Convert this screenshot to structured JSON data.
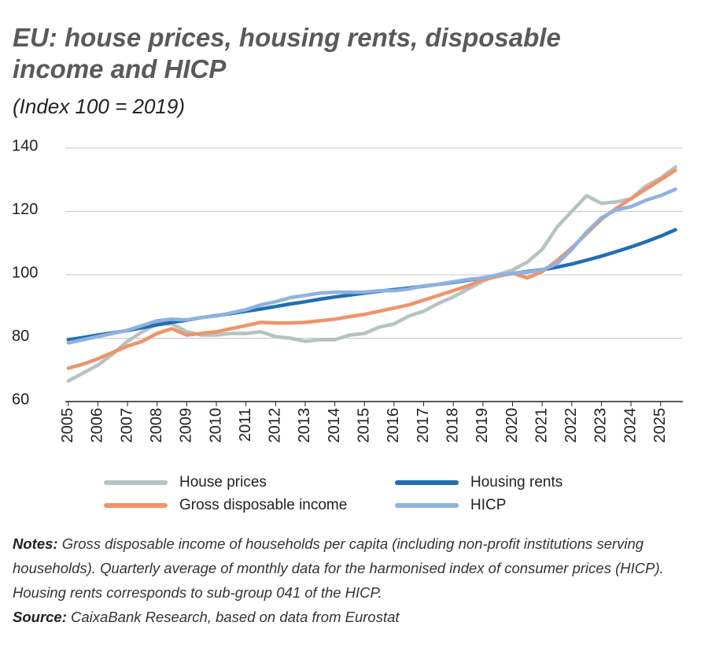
{
  "chart_data": {
    "type": "line",
    "title": "EU: house prices, housing rents, disposable income and HICP",
    "subtitle": "(Index 100 = 2019)",
    "x": [
      2005,
      2005.5,
      2006,
      2006.5,
      2007,
      2007.5,
      2008,
      2008.5,
      2009,
      2009.5,
      2010,
      2010.5,
      2011,
      2011.5,
      2012,
      2012.5,
      2013,
      2013.5,
      2014,
      2014.5,
      2015,
      2015.5,
      2016,
      2016.5,
      2017,
      2017.5,
      2018,
      2018.5,
      2019,
      2019.5,
      2020,
      2020.5,
      2021,
      2021.5,
      2022,
      2022.5,
      2023,
      2023.5,
      2024,
      2024.5,
      2025,
      2025.5
    ],
    "series": [
      {
        "name": "House prices",
        "color": "#b5c3c3",
        "values": [
          66.5,
          69,
          71.5,
          75,
          79,
          82,
          84.5,
          84.5,
          82,
          81,
          81,
          81.5,
          81.5,
          82,
          80.5,
          80,
          79,
          79.5,
          79.5,
          81,
          81.5,
          83.5,
          84.5,
          87,
          88.5,
          91,
          93,
          95.5,
          98,
          100,
          101.5,
          104,
          108,
          115,
          120,
          125,
          122.5,
          123,
          124,
          128,
          130.5,
          134
        ]
      },
      {
        "name": "Housing rents",
        "color": "#1f6fb2",
        "values": [
          79.5,
          80.2,
          81,
          81.7,
          82.4,
          83.3,
          84.2,
          85,
          85.7,
          86.5,
          87.1,
          87.8,
          88.5,
          89.2,
          90,
          90.8,
          91.5,
          92.3,
          93,
          93.6,
          94.2,
          94.8,
          95.3,
          95.8,
          96.4,
          97,
          97.6,
          98.3,
          99,
          99.7,
          100.4,
          101,
          101.6,
          102.4,
          103.4,
          104.6,
          105.9,
          107.3,
          108.8,
          110.4,
          112.2,
          114.2
        ]
      },
      {
        "name": "Gross disposable income",
        "color": "#f0936a",
        "values": [
          70.5,
          71.8,
          73.5,
          75.5,
          77.5,
          79,
          81.5,
          83,
          81,
          81.5,
          82,
          83,
          84,
          85,
          84.8,
          84.8,
          85,
          85.5,
          86,
          86.8,
          87.5,
          88.5,
          89.5,
          90.5,
          92,
          93.5,
          95,
          96.5,
          98.5,
          99.5,
          100.5,
          99,
          101,
          104.5,
          108.5,
          113,
          117.5,
          121,
          124,
          127,
          130,
          133
        ]
      },
      {
        "name": "HICP",
        "color": "#8fb2e0",
        "values": [
          78.5,
          79.5,
          80.5,
          81.5,
          82.5,
          84,
          85.5,
          86,
          85.8,
          86.5,
          87,
          88,
          89,
          90.5,
          91.5,
          92.8,
          93.5,
          94.2,
          94.5,
          94.5,
          94.5,
          95,
          95,
          95.5,
          96.5,
          97,
          97.8,
          98.5,
          99,
          100,
          100.5,
          100.8,
          101.5,
          103.5,
          108,
          113.5,
          118,
          120.5,
          121.5,
          123.5,
          125,
          127
        ]
      }
    ],
    "xlim": [
      2004.9,
      2025.75
    ],
    "xticks": [
      2005,
      2006,
      2007,
      2008,
      2009,
      2010,
      2011,
      2012,
      2013,
      2014,
      2015,
      2016,
      2017,
      2018,
      2019,
      2020,
      2021,
      2022,
      2023,
      2024,
      2025
    ],
    "ylim": [
      60,
      140
    ],
    "yticks": [
      60,
      80,
      100,
      120,
      140
    ],
    "grid": true,
    "notes": {
      "label": "Notes:",
      "text": "Gross disposable income of households per capita (including non-profit institutions serving households). Quarterly average of monthly data for the harmonised index of consumer prices (HICP). Housing rents corresponds to sub-group 041 of the HICP."
    },
    "source": {
      "label": "Source:",
      "text": "CaixaBank Research, based on data from Eurostat"
    }
  }
}
